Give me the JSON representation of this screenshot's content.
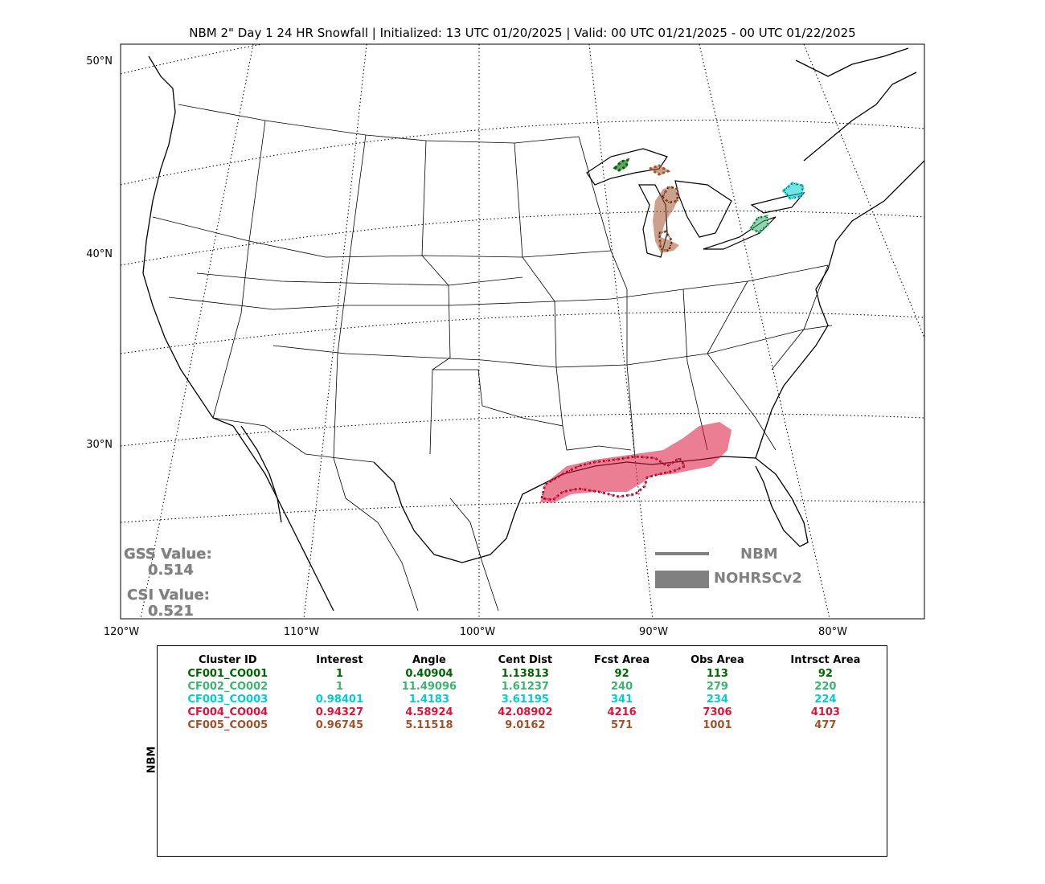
{
  "title": "NBM 2\" Day 1 24 HR Snowfall | Initialized: 13 UTC 01/20/2025 | Valid: 00 UTC 01/21/2025 - 00 UTC 01/22/2025",
  "lat_labels": [
    "50°N",
    "40°N",
    "30°N"
  ],
  "lon_labels": [
    "120°W",
    "110°W",
    "100°W",
    "90°W",
    "80°W"
  ],
  "scores": {
    "gss_label": "GSS Value:",
    "gss_value": "0.514",
    "csi_label": "CSI Value:",
    "csi_value": "0.521"
  },
  "legend": {
    "line_label": "NBM",
    "fill_label": "NOHRSCv2",
    "color": "#808080"
  },
  "table": {
    "side_label": "NBM",
    "headers": [
      "Cluster ID",
      "Interest",
      "Angle",
      "Cent Dist",
      "Fcst Area",
      "Obs Area",
      "Intrsct Area"
    ],
    "rows": [
      {
        "color": "#006400",
        "cells": [
          "CF001_CO001",
          "1",
          "0.40904",
          "1.13813",
          "92",
          "113",
          "92"
        ]
      },
      {
        "color": "#3cb371",
        "cells": [
          "CF002_CO002",
          "1",
          "11.49096",
          "1.61237",
          "240",
          "279",
          "220"
        ]
      },
      {
        "color": "#00ced1",
        "cells": [
          "CF003_CO003",
          "0.98401",
          "1.4183",
          "3.61195",
          "341",
          "234",
          "224"
        ]
      },
      {
        "color": "#dc143c",
        "cells": [
          "CF004_CO004",
          "0.94327",
          "4.58924",
          "42.08902",
          "4216",
          "7306",
          "4103"
        ]
      },
      {
        "color": "#a0522d",
        "cells": [
          "CF005_CO005",
          "0.96745",
          "5.11518",
          "9.0162",
          "571",
          "1001",
          "477"
        ]
      }
    ]
  },
  "clusters": [
    {
      "id": "CF001_CO001",
      "color": "#006400"
    },
    {
      "id": "CF002_CO002",
      "color": "#3cb371"
    },
    {
      "id": "CF003_CO003",
      "color": "#00ced1"
    },
    {
      "id": "CF004_CO004",
      "color": "#dc143c"
    },
    {
      "id": "CF005_CO005",
      "color": "#a0522d"
    }
  ]
}
